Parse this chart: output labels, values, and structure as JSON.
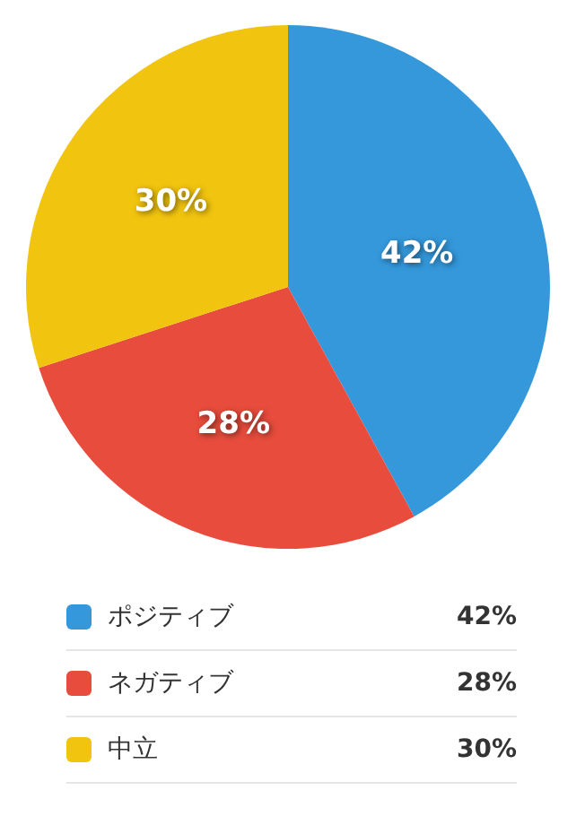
{
  "chart_data": {
    "type": "pie",
    "categories": [
      "ポジティブ",
      "ネガティブ",
      "中立"
    ],
    "values": [
      42,
      28,
      30
    ],
    "colors": [
      "#3498db",
      "#e74c3c",
      "#f1c40f"
    ],
    "value_labels": [
      "42%",
      "28%",
      "30%"
    ],
    "legend": "bottom"
  }
}
